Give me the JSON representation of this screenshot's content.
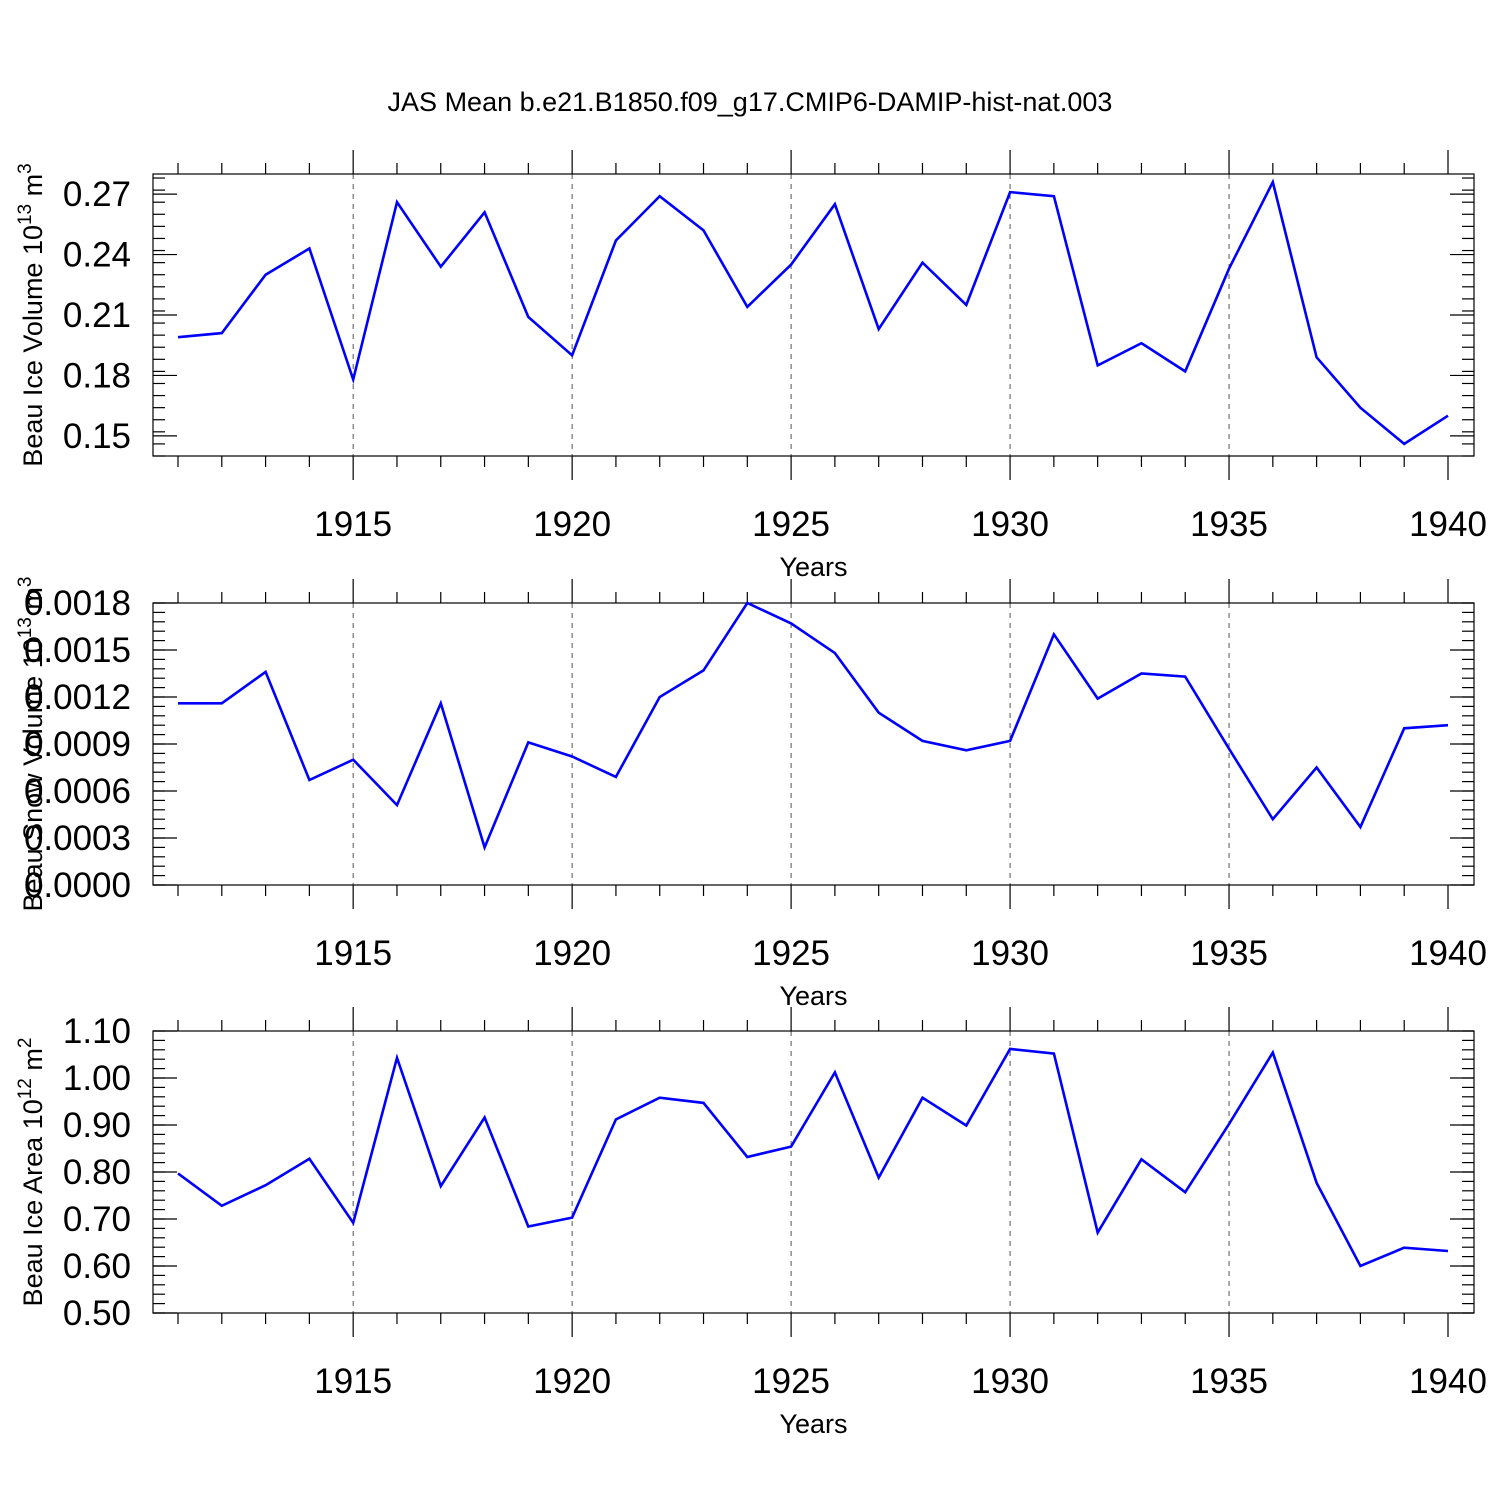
{
  "title": "JAS Mean b.e21.B1850.f09_g17.CMIP6-DAMIP-hist-nat.003",
  "line_color": "#0000ff",
  "chart_data": [
    {
      "type": "line",
      "ylabel_main": "Beau Ice Volume 10",
      "ylabel_sup": "13",
      "ylabel_unit": " m",
      "ylabel_unit_sup": "3",
      "xlabel": "Years",
      "xlim": [
        1911,
        1940
      ],
      "ylim": [
        0.14,
        0.28
      ],
      "xticks": [
        "1915",
        "1920",
        "1925",
        "1930",
        "1935",
        "1940"
      ],
      "yticks": [
        "0.15",
        "0.18",
        "0.21",
        "0.24",
        "0.27"
      ],
      "x": [
        1911,
        1912,
        1913,
        1914,
        1915,
        1916,
        1917,
        1918,
        1919,
        1920,
        1921,
        1922,
        1923,
        1924,
        1925,
        1926,
        1927,
        1928,
        1929,
        1930,
        1931,
        1932,
        1933,
        1934,
        1935,
        1936,
        1937,
        1938,
        1939,
        1940
      ],
      "values": [
        0.199,
        0.201,
        0.23,
        0.243,
        0.178,
        0.266,
        0.234,
        0.261,
        0.209,
        0.19,
        0.247,
        0.269,
        0.252,
        0.214,
        0.235,
        0.265,
        0.203,
        0.236,
        0.215,
        0.271,
        0.269,
        0.185,
        0.196,
        0.182,
        0.233,
        0.276,
        0.189,
        0.164,
        0.146,
        0.16
      ]
    },
    {
      "type": "line",
      "ylabel_main": "Beau Snow Volume 10",
      "ylabel_sup": "13",
      "ylabel_unit": " m",
      "ylabel_unit_sup": "3",
      "xlabel": "Years",
      "xlim": [
        1911,
        1940
      ],
      "ylim": [
        0.0,
        0.0018
      ],
      "xticks": [
        "1915",
        "1920",
        "1925",
        "1930",
        "1935",
        "1940"
      ],
      "yticks": [
        "0.0000",
        "0.0003",
        "0.0006",
        "0.0009",
        "0.0012",
        "0.0015",
        "0.0018"
      ],
      "x": [
        1911,
        1912,
        1913,
        1914,
        1915,
        1916,
        1917,
        1918,
        1919,
        1920,
        1921,
        1922,
        1923,
        1924,
        1925,
        1926,
        1927,
        1928,
        1929,
        1930,
        1931,
        1932,
        1933,
        1934,
        1935,
        1936,
        1937,
        1938,
        1939,
        1940
      ],
      "values": [
        0.00116,
        0.00116,
        0.00136,
        0.00067,
        0.0008,
        0.00051,
        0.00116,
        0.00024,
        0.00091,
        0.00082,
        0.00069,
        0.0012,
        0.00137,
        0.0018,
        0.00167,
        0.00148,
        0.0011,
        0.00092,
        0.00086,
        0.00092,
        0.0016,
        0.00119,
        0.00135,
        0.00133,
        0.00087,
        0.00042,
        0.00075,
        0.00037,
        0.001,
        0.00102
      ]
    },
    {
      "type": "line",
      "ylabel_main": "Beau Ice Area 10",
      "ylabel_sup": "12",
      "ylabel_unit": " m",
      "ylabel_unit_sup": "2",
      "xlabel": "Years",
      "xlim": [
        1911,
        1940
      ],
      "ylim": [
        0.5,
        1.1
      ],
      "xticks": [
        "1915",
        "1920",
        "1925",
        "1930",
        "1935",
        "1940"
      ],
      "yticks": [
        "0.50",
        "0.60",
        "0.70",
        "0.80",
        "0.90",
        "1.00",
        "1.10"
      ],
      "x": [
        1911,
        1912,
        1913,
        1914,
        1915,
        1916,
        1917,
        1918,
        1919,
        1920,
        1921,
        1922,
        1923,
        1924,
        1925,
        1926,
        1927,
        1928,
        1929,
        1930,
        1931,
        1932,
        1933,
        1934,
        1935,
        1936,
        1937,
        1938,
        1939,
        1940
      ],
      "values": [
        0.797,
        0.728,
        0.772,
        0.828,
        0.692,
        1.043,
        0.77,
        0.916,
        0.684,
        0.703,
        0.912,
        0.958,
        0.947,
        0.832,
        0.854,
        1.012,
        0.788,
        0.958,
        0.899,
        1.062,
        1.052,
        0.671,
        0.827,
        0.757,
        0.902,
        1.054,
        0.777,
        0.6,
        0.639,
        0.632
      ]
    }
  ]
}
